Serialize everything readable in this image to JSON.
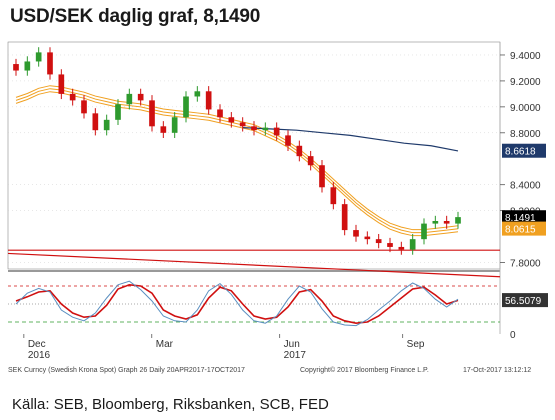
{
  "header": {
    "title": "USD/SEK daglig graf, 8,1490"
  },
  "footer": {
    "source": "Källa: SEB, Bloomberg, Riksbanken, SCB, FED"
  },
  "chart_data": [
    {
      "type": "candlestick",
      "ylim": [
        7.75,
        9.5
      ],
      "y_ticks": [
        {
          "value": 9.4,
          "label": "9.4000"
        },
        {
          "value": 9.2,
          "label": "9.2000"
        },
        {
          "value": 9.0,
          "label": "9.0000"
        },
        {
          "value": 8.8,
          "label": "8.8000"
        },
        {
          "value": 8.4,
          "label": "8.4000"
        },
        {
          "value": 8.2,
          "label": "8.2000"
        },
        {
          "value": 7.8,
          "label": "7.8000"
        }
      ],
      "price_labels": [
        {
          "value": 8.6618,
          "label": "8.6618",
          "color": "#1f3a6b"
        },
        {
          "value": 8.1491,
          "label": "8.1491",
          "color": "#000000"
        },
        {
          "value": 8.0615,
          "label": "8.0615",
          "color": "#f0a020"
        }
      ],
      "x_labels": [
        {
          "label": "Dec",
          "sub": "2016"
        },
        {
          "label": "Mar",
          "sub": ""
        },
        {
          "label": "Jun",
          "sub": "2017"
        },
        {
          "label": "Sep",
          "sub": ""
        }
      ],
      "series": [
        {
          "kind": "ohlc",
          "close": [
            9.28,
            9.35,
            9.42,
            9.25,
            9.1,
            9.05,
            8.95,
            8.82,
            8.9,
            9.02,
            9.1,
            9.05,
            8.85,
            8.8,
            8.92,
            9.08,
            9.12,
            8.98,
            8.92,
            8.88,
            8.85,
            8.82,
            8.84,
            8.78,
            8.7,
            8.62,
            8.55,
            8.38,
            8.25,
            8.05,
            8.0,
            7.98,
            7.95,
            7.92,
            7.9,
            7.98,
            8.1,
            8.12,
            8.1,
            8.15
          ],
          "up_color": "#2e9a2e",
          "down_color": "#d01010"
        },
        {
          "kind": "moving-average",
          "color": "#f0a020",
          "values": [
            9.05,
            9.08,
            9.12,
            9.14,
            9.13,
            9.11,
            9.09,
            9.06,
            9.04,
            9.02,
            9.01,
            9.0,
            8.98,
            8.96,
            8.95,
            8.94,
            8.93,
            8.92,
            8.9,
            8.88,
            8.86,
            8.84,
            8.8,
            8.76,
            8.71,
            8.65,
            8.58,
            8.5,
            8.42,
            8.34,
            8.26,
            8.19,
            8.13,
            8.08,
            8.05,
            8.03,
            8.03,
            8.04,
            8.05,
            8.06
          ]
        },
        {
          "kind": "moving-average",
          "color": "#1f3a6b",
          "values": [
            8.84,
            8.83,
            8.82,
            8.8,
            8.78,
            8.75,
            8.72,
            8.7,
            8.66
          ]
        }
      ],
      "horizontal_lines": [
        7.895
      ],
      "trend_line": {
        "color": "#d01010",
        "from": 7.87,
        "to": 7.69
      }
    },
    {
      "type": "line",
      "indicator_value": "56.5079",
      "y_ticks": [
        {
          "value": 0,
          "label": "0"
        }
      ],
      "reference_levels": [
        80,
        50,
        20
      ],
      "series": [
        {
          "name": "",
          "color": "#d01010",
          "values": [
            55,
            62,
            70,
            72,
            50,
            35,
            28,
            30,
            48,
            75,
            82,
            80,
            68,
            40,
            30,
            25,
            32,
            60,
            78,
            72,
            50,
            30,
            25,
            28,
            45,
            70,
            74,
            55,
            30,
            22,
            18,
            20,
            30,
            45,
            60,
            75,
            78,
            65,
            50,
            56
          ]
        },
        {
          "name": "",
          "color": "#5a8fc0",
          "values": [
            50,
            68,
            76,
            70,
            40,
            28,
            22,
            35,
            60,
            82,
            88,
            74,
            55,
            30,
            22,
            20,
            40,
            72,
            84,
            66,
            40,
            22,
            18,
            30,
            58,
            80,
            70,
            42,
            20,
            15,
            14,
            24,
            40,
            55,
            72,
            85,
            76,
            58,
            45,
            58
          ]
        }
      ]
    }
  ],
  "caption": {
    "left": "SEK Curncy (Swedish Krona Spot) Graph 26  Daily 20APR2017-17OCT2017",
    "center": "Copyright© 2017 Bloomberg Finance L.P.",
    "right": "17-Oct-2017 13:12:12"
  }
}
